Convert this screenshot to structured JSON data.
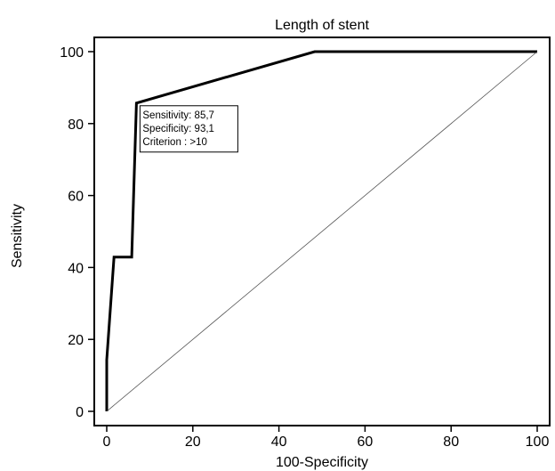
{
  "chart_data": {
    "type": "line",
    "title": "Length of stent",
    "xlabel": "100-Specificity",
    "ylabel": "Sensitivity",
    "xlim": [
      0,
      100
    ],
    "ylim": [
      0,
      100
    ],
    "xticks": [
      0,
      20,
      40,
      60,
      80,
      100
    ],
    "yticks": [
      0,
      20,
      40,
      60,
      80,
      100
    ],
    "grid": false,
    "series": [
      {
        "role": "roc-curve",
        "x": [
          0,
          0,
          1.7,
          5.8,
          6.9,
          48.3,
          100
        ],
        "y": [
          0,
          14.3,
          42.9,
          42.9,
          85.7,
          100,
          100
        ]
      },
      {
        "role": "reference-diagonal",
        "x": [
          0,
          100
        ],
        "y": [
          0,
          100
        ]
      }
    ],
    "annotation": {
      "lines": [
        "Sensitivity: 85,7",
        "Specificity: 93,1",
        "Criterion : >10"
      ],
      "at": {
        "x": 6.9,
        "y": 85.7
      }
    }
  }
}
